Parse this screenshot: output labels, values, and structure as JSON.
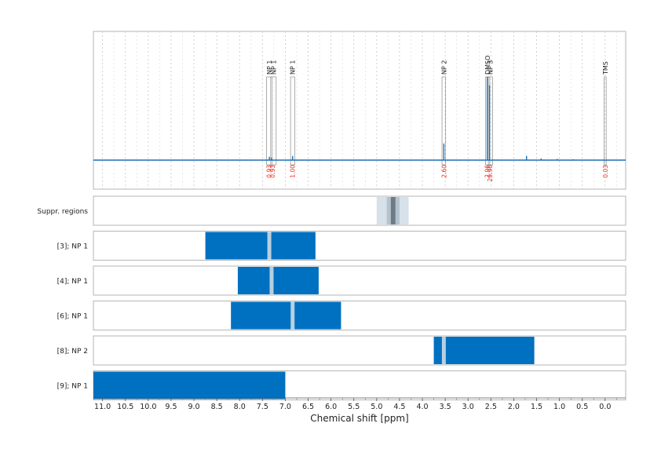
{
  "chart_data": {
    "type": "nmr-spectrum-with-region-bars",
    "xlabel": "Chemical shift [ppm]",
    "xlim": [
      11.2,
      -0.45
    ],
    "x_reversed": true,
    "x_ticks": [
      "11.0",
      "10.5",
      "10.0",
      "9.5",
      "9.0",
      "8.5",
      "8.0",
      "7.5",
      "7.0",
      "6.5",
      "6.0",
      "5.5",
      "5.0",
      "4.5",
      "4.0",
      "3.5",
      "3.0",
      "2.5",
      "2.0",
      "1.5",
      "1.0",
      "0.5",
      "0.0"
    ],
    "x_tick_values": [
      11.0,
      10.5,
      10.0,
      9.5,
      9.0,
      8.5,
      8.0,
      7.5,
      7.0,
      6.5,
      6.0,
      5.5,
      5.0,
      4.5,
      4.0,
      3.5,
      3.0,
      2.5,
      2.0,
      1.5,
      1.0,
      0.5,
      0.0
    ],
    "grid": "dotted vertical",
    "colors": {
      "spectrum": "#1f6fb0",
      "bar": "#0070c0",
      "marker": "#b8cfe0",
      "integral": "#e8291c",
      "suppr_light": "#d7e1ea",
      "suppr_mid": "#b4c2cd",
      "suppr_dark": "#6d7b86",
      "frame": "#b5b5b5"
    },
    "spectrum": {
      "baseline": 0,
      "peaks": [
        {
          "ppm": 7.35,
          "height": 0.04
        },
        {
          "ppm": 7.3,
          "height": 0.03
        },
        {
          "ppm": 6.84,
          "height": 0.05
        },
        {
          "ppm": 3.53,
          "height": 0.2
        },
        {
          "ppm": 2.58,
          "height": 1.0
        },
        {
          "ppm": 2.53,
          "height": 0.9
        },
        {
          "ppm": 1.72,
          "height": 0.05
        },
        {
          "ppm": 1.4,
          "height": 0.02
        },
        {
          "ppm": 1.05,
          "height": 0.015
        },
        {
          "ppm": 0.7,
          "height": 0.01
        }
      ],
      "annotations": [
        {
          "label": "NP 1",
          "ppm": 7.35,
          "width": 0.12
        },
        {
          "label": "NP 1",
          "ppm": 7.26,
          "width": 0.12
        },
        {
          "label": "NP 1",
          "ppm": 6.84,
          "width": 0.09
        },
        {
          "label": "NP 2",
          "ppm": 3.53,
          "width": 0.08
        },
        {
          "label": "DMSO",
          "ppm": 2.57,
          "width": 0.09
        },
        {
          "label": "NP 3",
          "ppm": 2.51,
          "width": 0.09
        },
        {
          "label": "TMS",
          "ppm": 0.0,
          "width": 0.04
        }
      ],
      "integrals": [
        {
          "ppm": 7.36,
          "label": "0.93"
        },
        {
          "ppm": 7.28,
          "label": "0.93"
        },
        {
          "ppm": 6.84,
          "label": "1.00"
        },
        {
          "ppm": 3.53,
          "label": "2.60"
        },
        {
          "ppm": 2.58,
          "label": "2.96"
        },
        {
          "ppm": 2.52,
          "label": "29.96"
        },
        {
          "ppm": 0.0,
          "label": "0.03"
        }
      ]
    },
    "suppression": {
      "label": "Suppr. regions",
      "light": [
        5.0,
        4.3
      ],
      "mid": [
        4.78,
        4.5
      ],
      "dark": [
        4.69,
        4.59
      ]
    },
    "rows": [
      {
        "label": "[3]; NP 1",
        "start": 8.75,
        "end": 6.34,
        "marker": 7.35
      },
      {
        "label": "[4]; NP 1",
        "start": 8.04,
        "end": 6.27,
        "marker": 7.3
      },
      {
        "label": "[6]; NP 1",
        "start": 8.19,
        "end": 5.78,
        "marker": 6.84
      },
      {
        "label": "[8]; NP 2",
        "start": 3.75,
        "end": 1.55,
        "marker": 3.53
      },
      {
        "label": "[9]; NP 1",
        "start": 11.2,
        "end": 7.0,
        "marker": null
      }
    ]
  }
}
